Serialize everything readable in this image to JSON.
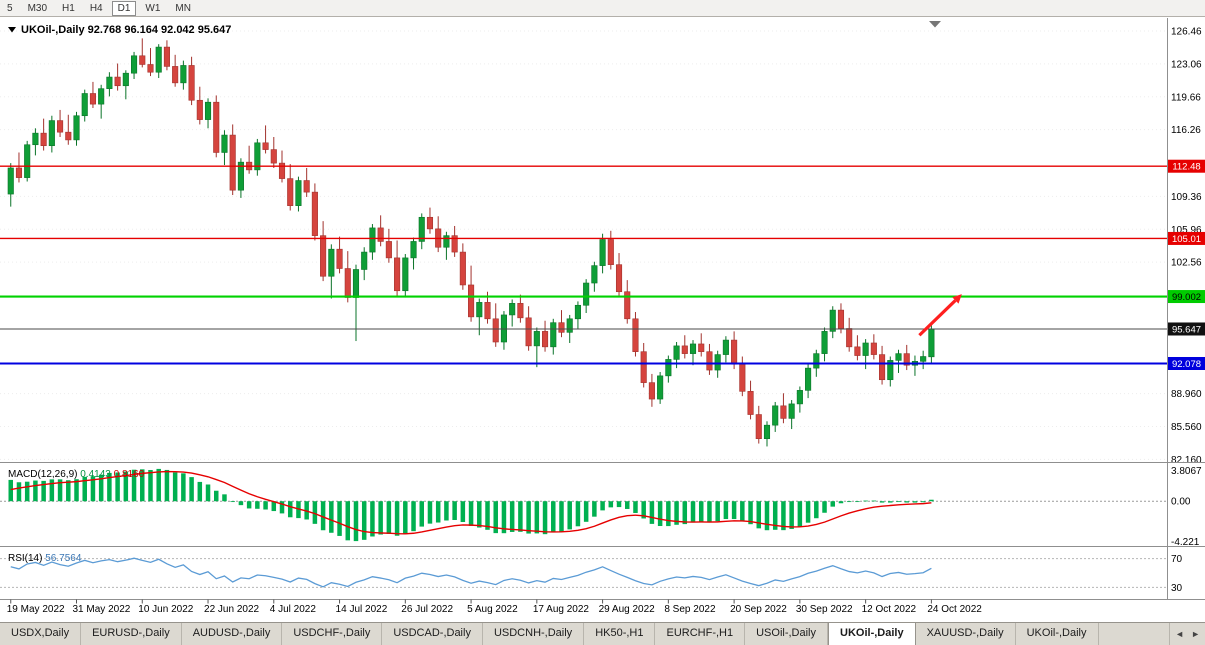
{
  "toolbar": {
    "timeframes": [
      {
        "label": "5",
        "active": false
      },
      {
        "label": "M30",
        "active": false
      },
      {
        "label": "H1",
        "active": false
      },
      {
        "label": "H4",
        "active": false
      },
      {
        "label": "D1",
        "active": true
      },
      {
        "label": "W1",
        "active": false
      },
      {
        "label": "MN",
        "active": false
      }
    ]
  },
  "chart_data": {
    "type": "candlestick",
    "symbol": "UKOil-,Daily",
    "ohlc_display": "92.768 96.164 92.042 95.647",
    "y_axis_labels": [
      {
        "value": 126.46,
        "text": "126.46"
      },
      {
        "value": 123.06,
        "text": "123.06"
      },
      {
        "value": 119.66,
        "text": "119.66"
      },
      {
        "value": 116.26,
        "text": "116.26"
      },
      {
        "value": 109.36,
        "text": "109.36"
      },
      {
        "value": 105.96,
        "text": "105.96"
      },
      {
        "value": 102.56,
        "text": "102.56"
      },
      {
        "value": 88.96,
        "text": "88.960"
      },
      {
        "value": 85.56,
        "text": "85.560"
      },
      {
        "value": 82.16,
        "text": "82.160"
      }
    ],
    "levels": [
      {
        "value": 112.48,
        "label": "112.48",
        "color": "#e60000",
        "width": 1.4,
        "badge_bg": "#e60000",
        "badge_text": "#ffffff"
      },
      {
        "value": 105.01,
        "label": "105.01",
        "color": "#e60000",
        "width": 1.4,
        "badge_bg": "#e60000",
        "badge_text": "#ffffff"
      },
      {
        "value": 99.002,
        "label": "99.002",
        "color": "#00d200",
        "width": 2.2,
        "badge_bg": "#00cc00",
        "badge_text": "#000000"
      },
      {
        "value": 95.647,
        "label": "95.647",
        "color": "#4a4a4a",
        "width": 1,
        "badge_bg": "#111111",
        "badge_text": "#ffffff"
      },
      {
        "value": 92.078,
        "label": "92.078",
        "color": "#0000e0",
        "width": 2,
        "badge_bg": "#0000dd",
        "badge_text": "#ffffff"
      }
    ],
    "annotation_arrow": {
      "color": "#ff1f1f",
      "from_price": 95.0,
      "to_price": 98.6
    },
    "date_labels": [
      {
        "index": 0,
        "text": "19 May 2022"
      },
      {
        "index": 8,
        "text": "31 May 2022"
      },
      {
        "index": 16,
        "text": "10 Jun 2022"
      },
      {
        "index": 24,
        "text": "22 Jun 2022"
      },
      {
        "index": 32,
        "text": "4 Jul 2022"
      },
      {
        "index": 40,
        "text": "14 Jul 2022"
      },
      {
        "index": 48,
        "text": "26 Jul 2022"
      },
      {
        "index": 56,
        "text": "5 Aug 2022"
      },
      {
        "index": 64,
        "text": "17 Aug 2022"
      },
      {
        "index": 72,
        "text": "29 Aug 2022"
      },
      {
        "index": 80,
        "text": "8 Sep 2022"
      },
      {
        "index": 88,
        "text": "20 Sep 2022"
      },
      {
        "index": 96,
        "text": "30 Sep 2022"
      },
      {
        "index": 104,
        "text": "12 Oct 2022"
      },
      {
        "index": 112,
        "text": "24 Oct 2022"
      }
    ],
    "candles": [
      [
        109.6,
        112.8,
        108.3,
        112.3
      ],
      [
        112.3,
        113.9,
        110.8,
        111.3
      ],
      [
        111.3,
        115.1,
        110.9,
        114.7
      ],
      [
        114.7,
        116.4,
        113.6,
        115.9
      ],
      [
        115.9,
        117.4,
        114.1,
        114.6
      ],
      [
        114.6,
        117.7,
        113.9,
        117.2
      ],
      [
        117.2,
        118.3,
        115.5,
        116.0
      ],
      [
        116.0,
        117.8,
        114.7,
        115.2
      ],
      [
        115.2,
        118.1,
        114.6,
        117.7
      ],
      [
        117.7,
        120.4,
        117.1,
        120.0
      ],
      [
        120.0,
        121.2,
        118.5,
        118.9
      ],
      [
        118.9,
        120.9,
        117.4,
        120.5
      ],
      [
        120.5,
        122.2,
        119.7,
        121.7
      ],
      [
        121.7,
        123.1,
        120.3,
        120.8
      ],
      [
        120.8,
        122.4,
        119.4,
        122.1
      ],
      [
        122.1,
        124.3,
        121.5,
        123.9
      ],
      [
        123.9,
        125.7,
        122.7,
        123.0
      ],
      [
        123.0,
        124.7,
        121.8,
        122.2
      ],
      [
        122.2,
        125.1,
        121.6,
        124.8
      ],
      [
        124.8,
        125.5,
        122.4,
        122.8
      ],
      [
        122.8,
        124.0,
        120.7,
        121.1
      ],
      [
        121.1,
        123.4,
        120.4,
        122.9
      ],
      [
        122.9,
        123.8,
        118.8,
        119.3
      ],
      [
        119.3,
        120.7,
        116.8,
        117.3
      ],
      [
        117.3,
        119.5,
        116.4,
        119.1
      ],
      [
        119.1,
        119.8,
        113.4,
        113.9
      ],
      [
        113.9,
        116.2,
        112.6,
        115.7
      ],
      [
        115.7,
        116.8,
        109.5,
        110.0
      ],
      [
        110.0,
        113.3,
        109.2,
        112.9
      ],
      [
        112.9,
        114.6,
        111.7,
        112.1
      ],
      [
        112.1,
        115.3,
        111.5,
        114.9
      ],
      [
        114.9,
        116.7,
        113.8,
        114.2
      ],
      [
        114.2,
        115.5,
        112.3,
        112.8
      ],
      [
        112.8,
        114.1,
        110.8,
        111.2
      ],
      [
        111.2,
        112.7,
        107.9,
        108.4
      ],
      [
        108.4,
        111.4,
        107.8,
        111.0
      ],
      [
        111.0,
        112.3,
        109.3,
        109.8
      ],
      [
        109.8,
        110.7,
        104.8,
        105.3
      ],
      [
        105.3,
        106.8,
        100.6,
        101.1
      ],
      [
        101.1,
        104.4,
        98.8,
        103.9
      ],
      [
        103.9,
        105.2,
        101.4,
        101.9
      ],
      [
        101.9,
        103.7,
        98.4,
        98.9
      ],
      [
        98.9,
        102.3,
        94.4,
        101.8
      ],
      [
        101.8,
        104.1,
        100.7,
        103.6
      ],
      [
        103.6,
        106.5,
        102.8,
        106.1
      ],
      [
        106.1,
        107.4,
        104.2,
        104.7
      ],
      [
        104.7,
        106.0,
        102.5,
        103.0
      ],
      [
        103.0,
        104.8,
        99.1,
        99.6
      ],
      [
        99.6,
        103.4,
        98.9,
        103.0
      ],
      [
        103.0,
        105.1,
        101.8,
        104.7
      ],
      [
        104.7,
        107.6,
        103.9,
        107.2
      ],
      [
        107.2,
        108.2,
        105.5,
        106.0
      ],
      [
        106.0,
        107.3,
        103.6,
        104.1
      ],
      [
        104.1,
        105.7,
        102.8,
        105.3
      ],
      [
        105.3,
        106.3,
        103.1,
        103.6
      ],
      [
        103.6,
        104.5,
        99.7,
        100.2
      ],
      [
        100.2,
        102.2,
        96.4,
        96.9
      ],
      [
        96.9,
        98.8,
        95.0,
        98.4
      ],
      [
        98.4,
        99.5,
        96.2,
        96.7
      ],
      [
        96.7,
        98.3,
        93.8,
        94.3
      ],
      [
        94.3,
        97.5,
        93.5,
        97.1
      ],
      [
        97.1,
        98.7,
        95.9,
        98.3
      ],
      [
        98.3,
        99.2,
        96.3,
        96.8
      ],
      [
        96.8,
        98.0,
        93.4,
        93.9
      ],
      [
        93.9,
        95.8,
        91.7,
        95.4
      ],
      [
        95.4,
        96.5,
        93.3,
        93.8
      ],
      [
        93.8,
        96.7,
        93.0,
        96.3
      ],
      [
        96.3,
        97.6,
        94.8,
        95.3
      ],
      [
        95.3,
        97.1,
        94.2,
        96.7
      ],
      [
        96.7,
        98.5,
        95.6,
        98.1
      ],
      [
        98.1,
        100.8,
        97.3,
        100.4
      ],
      [
        100.4,
        102.6,
        99.5,
        102.2
      ],
      [
        102.2,
        105.5,
        101.4,
        104.9
      ],
      [
        104.9,
        105.8,
        101.8,
        102.3
      ],
      [
        102.3,
        103.5,
        99.0,
        99.5
      ],
      [
        99.5,
        100.7,
        96.2,
        96.7
      ],
      [
        96.7,
        97.4,
        92.8,
        93.3
      ],
      [
        93.3,
        94.2,
        89.6,
        90.1
      ],
      [
        90.1,
        91.0,
        87.6,
        88.4
      ],
      [
        88.4,
        91.2,
        87.9,
        90.8
      ],
      [
        90.8,
        92.9,
        90.1,
        92.5
      ],
      [
        92.5,
        94.3,
        91.6,
        93.9
      ],
      [
        93.9,
        95.0,
        92.6,
        93.1
      ],
      [
        93.1,
        94.5,
        91.9,
        94.1
      ],
      [
        94.1,
        95.2,
        92.8,
        93.3
      ],
      [
        93.3,
        94.1,
        90.9,
        91.4
      ],
      [
        91.4,
        93.4,
        90.6,
        93.0
      ],
      [
        93.0,
        94.9,
        92.2,
        94.5
      ],
      [
        94.5,
        95.4,
        91.5,
        92.0
      ],
      [
        92.0,
        92.8,
        88.7,
        89.2
      ],
      [
        89.2,
        90.3,
        86.3,
        86.8
      ],
      [
        86.8,
        87.7,
        83.8,
        84.3
      ],
      [
        84.3,
        86.1,
        83.5,
        85.7
      ],
      [
        85.7,
        88.1,
        85.0,
        87.7
      ],
      [
        87.7,
        89.0,
        85.9,
        86.4
      ],
      [
        86.4,
        88.3,
        85.3,
        87.9
      ],
      [
        87.9,
        89.7,
        87.0,
        89.3
      ],
      [
        89.3,
        92.0,
        88.5,
        91.6
      ],
      [
        91.6,
        93.5,
        90.7,
        93.1
      ],
      [
        93.1,
        95.8,
        92.3,
        95.4
      ],
      [
        95.4,
        98.0,
        94.7,
        97.6
      ],
      [
        97.6,
        98.3,
        95.2,
        95.7
      ],
      [
        95.7,
        96.8,
        93.3,
        93.8
      ],
      [
        93.8,
        95.0,
        92.4,
        92.9
      ],
      [
        92.9,
        94.6,
        91.5,
        94.2
      ],
      [
        94.2,
        95.1,
        92.5,
        93.0
      ],
      [
        93.0,
        93.9,
        89.9,
        90.4
      ],
      [
        90.4,
        92.8,
        89.7,
        92.4
      ],
      [
        92.4,
        93.5,
        91.1,
        93.1
      ],
      [
        93.1,
        94.0,
        91.4,
        91.9
      ],
      [
        91.9,
        92.9,
        90.8,
        92.3
      ],
      [
        92.3,
        93.4,
        91.5,
        92.8
      ],
      [
        92.768,
        96.164,
        92.042,
        95.647
      ]
    ],
    "macd": {
      "name": "MACD(12,26,9)",
      "value_main": "0.4143",
      "value_signal": "0.8160",
      "axis_max": "3.8067",
      "axis_zero": "0.00",
      "axis_min": "-4.221",
      "params": {
        "fast": 12,
        "slow": 26,
        "signal": 9
      }
    },
    "rsi": {
      "name": "RSI(14)",
      "value": "56.7564",
      "period": 14,
      "levels": [
        70,
        30
      ]
    }
  },
  "tabs": {
    "items": [
      {
        "label": "USDX,Daily"
      },
      {
        "label": "EURUSD-,Daily"
      },
      {
        "label": "AUDUSD-,Daily"
      },
      {
        "label": "USDCHF-,Daily"
      },
      {
        "label": "USDCAD-,Daily"
      },
      {
        "label": "USDCNH-,Daily"
      },
      {
        "label": "HK50-,H1"
      },
      {
        "label": "EURCHF-,H1"
      },
      {
        "label": "USOil-,Daily"
      },
      {
        "label": "UKOil-,Daily"
      },
      {
        "label": "XAUUSD-,Daily"
      },
      {
        "label": "UKOil-,Daily"
      }
    ],
    "active_index": 9,
    "scroll_left": "◄",
    "scroll_right": "►"
  },
  "colors": {
    "candle_up": "#0f9e37",
    "candle_up_border": "#0a7328",
    "candle_down": "#d5443e",
    "candle_down_border": "#a2322d",
    "macd_histogram": "#00b050",
    "macd_signal": "#e60000",
    "rsi_line": "#5b9bd5",
    "grid": "#ededed",
    "separator": "#8f8f8f",
    "text": "#000000"
  }
}
